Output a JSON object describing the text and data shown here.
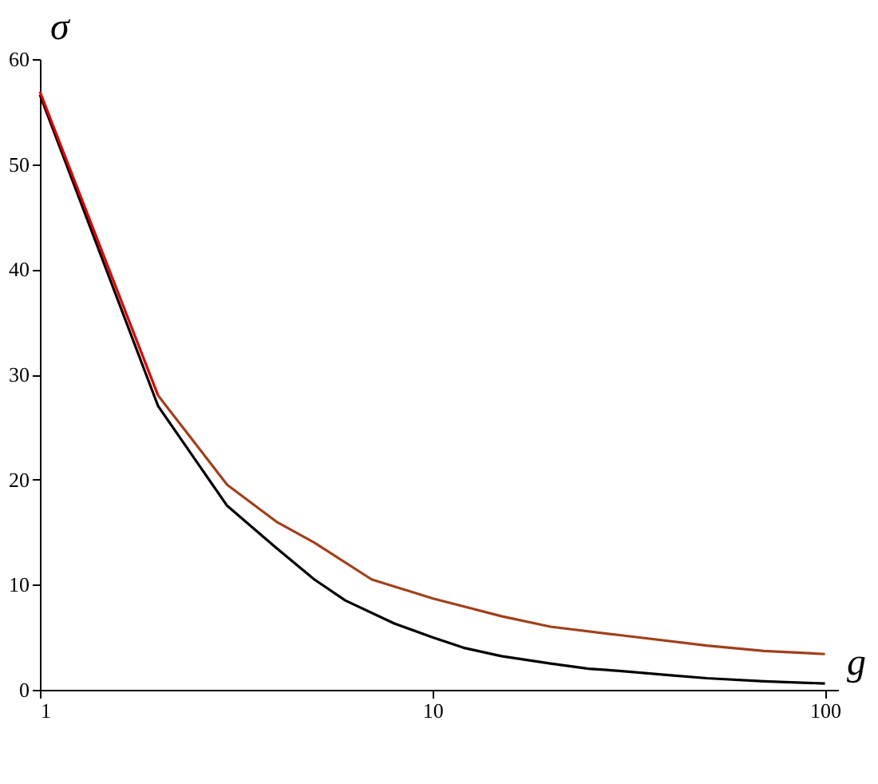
{
  "chart_data": {
    "type": "line",
    "xlabel": "g",
    "ylabel": "σ",
    "log": "x",
    "xlim": [
      1,
      108
    ],
    "xticks": [
      1,
      10,
      100
    ],
    "ylim": [
      0,
      60
    ],
    "yticks": [
      0,
      10,
      20,
      30,
      40,
      50,
      60
    ],
    "grid": false,
    "marker": "none",
    "line_style": "solid",
    "series": [
      {
        "color": "#000000",
        "x": [
          1,
          2,
          3,
          4,
          5,
          6,
          8,
          10,
          12,
          15,
          20,
          25,
          30,
          40,
          50,
          70,
          100
        ],
        "values": [
          56.6,
          27,
          17.5,
          13.5,
          10.5,
          8.5,
          6.3,
          5,
          4,
          3.2,
          2.5,
          2,
          1.8,
          1.4,
          1.1,
          0.8,
          0.6
        ]
      },
      {
        "color": "#a0401a",
        "x": [
          2,
          3,
          4,
          5,
          7,
          10,
          15,
          20,
          30,
          50,
          70,
          100
        ],
        "values": [
          28,
          19.5,
          16,
          14,
          10.5,
          8.7,
          7,
          6,
          5.2,
          4.2,
          3.7,
          3.4
        ]
      },
      {
        "color": "#e00000",
        "x": [
          1,
          2
        ],
        "values": [
          56.9,
          28
        ]
      }
    ]
  }
}
